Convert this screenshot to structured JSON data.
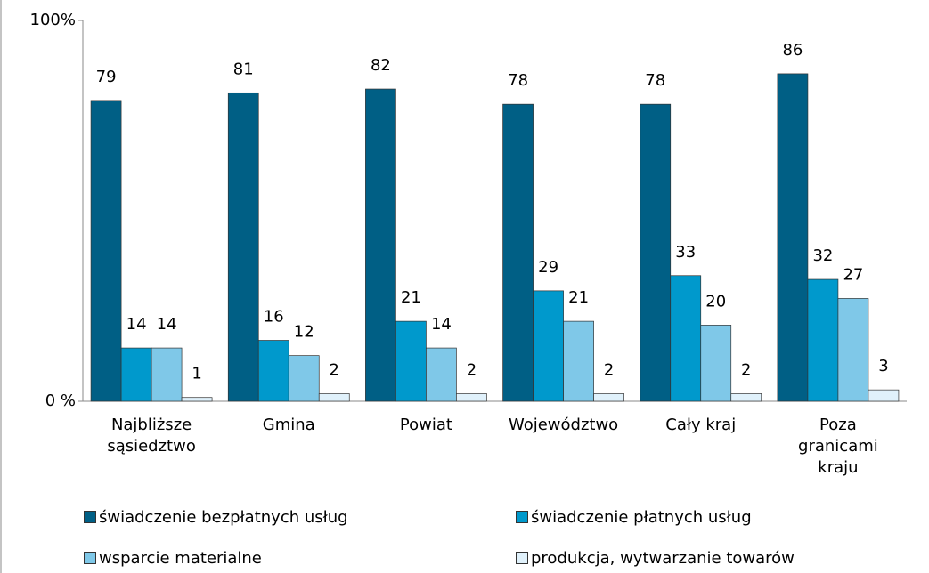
{
  "chart_data": {
    "type": "bar",
    "categories": [
      "Najbliższe sąsiedztwo",
      "Gmina",
      "Powiat",
      "Województwo",
      "Cały kraj",
      "Poza granicami kraju"
    ],
    "series": [
      {
        "name": "świadczenie bezpłatnych usług",
        "color": "#005f85",
        "values": [
          79,
          81,
          82,
          78,
          78,
          86
        ]
      },
      {
        "name": "świadczenie płatnych usług",
        "color": "#0099cc",
        "values": [
          14,
          16,
          21,
          29,
          33,
          32
        ]
      },
      {
        "name": "wsparcie materialne",
        "color": "#7fc8e8",
        "values": [
          14,
          12,
          14,
          21,
          20,
          27
        ]
      },
      {
        "name": "produkcja, wytwarzanie towarów",
        "color": "#e0f1fb",
        "values": [
          1,
          2,
          2,
          2,
          2,
          3
        ]
      }
    ],
    "ylim": [
      0,
      100
    ],
    "yticks": [
      {
        "value": 0,
        "label": "0 %"
      },
      {
        "value": 100,
        "label": "100%"
      }
    ],
    "grid": false
  }
}
